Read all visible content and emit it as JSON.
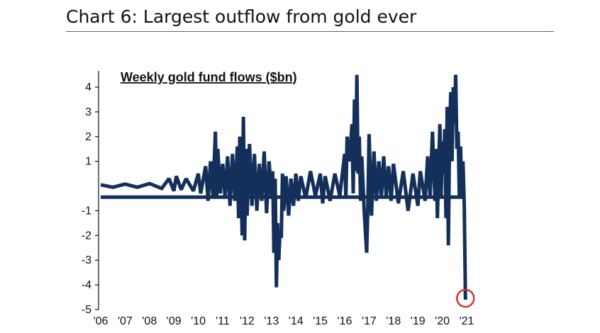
{
  "header": {
    "title": "Chart 6: Largest outflow from gold ever"
  },
  "colors": {
    "series": "#14305a",
    "highlight": "#d8342a",
    "rule": "#4a6b8e"
  },
  "chart_data": {
    "type": "bar",
    "title": "Weekly gold fund flows ($bn)",
    "xlabel": "",
    "ylabel": "",
    "ylim": [
      -5,
      4.5
    ],
    "yticks": [
      4,
      3,
      2,
      1,
      -1,
      -2,
      -3,
      -4,
      -5
    ],
    "xticks": [
      "'06",
      "'07",
      "'08",
      "'09",
      "'10",
      "'11",
      "'12",
      "'13",
      "'14",
      "'15",
      "'16",
      "'17",
      "'18",
      "'19",
      "'20",
      "'21"
    ],
    "grid": false,
    "annotation": {
      "label": "",
      "year": 2020.95,
      "value": -4.6,
      "shape": "circle"
    },
    "series": [
      {
        "values": [
          [
            2006.0,
            0.05
          ],
          [
            2006.5,
            -0.05
          ],
          [
            2007.0,
            0.08
          ],
          [
            2007.5,
            -0.05
          ],
          [
            2008.0,
            0.1
          ],
          [
            2008.5,
            -0.1
          ],
          [
            2008.8,
            0.3
          ],
          [
            2009.0,
            -0.2
          ],
          [
            2009.1,
            0.4
          ],
          [
            2009.3,
            -0.15
          ],
          [
            2009.5,
            0.3
          ],
          [
            2009.8,
            -0.2
          ],
          [
            2010.0,
            0.5
          ],
          [
            2010.1,
            -0.3
          ],
          [
            2010.3,
            0.8
          ],
          [
            2010.4,
            -0.6
          ],
          [
            2010.5,
            1.0
          ],
          [
            2010.6,
            -0.4
          ],
          [
            2010.7,
            2.2
          ],
          [
            2010.75,
            -0.5
          ],
          [
            2010.8,
            1.5
          ],
          [
            2010.9,
            -0.3
          ],
          [
            2011.0,
            0.9
          ],
          [
            2011.1,
            -0.5
          ],
          [
            2011.2,
            1.2
          ],
          [
            2011.3,
            -0.8
          ],
          [
            2011.4,
            1.3
          ],
          [
            2011.5,
            -0.6
          ],
          [
            2011.6,
            1.6
          ],
          [
            2011.65,
            -1.3
          ],
          [
            2011.7,
            2.0
          ],
          [
            2011.8,
            -2.0
          ],
          [
            2011.85,
            2.8
          ],
          [
            2011.9,
            -2.2
          ],
          [
            2011.95,
            1.5
          ],
          [
            2012.0,
            -1.2
          ],
          [
            2012.1,
            1.7
          ],
          [
            2012.2,
            -0.8
          ],
          [
            2012.3,
            1.3
          ],
          [
            2012.4,
            -1.0
          ],
          [
            2012.5,
            0.9
          ],
          [
            2012.6,
            -0.6
          ],
          [
            2012.7,
            1.4
          ],
          [
            2012.8,
            -1.1
          ],
          [
            2012.9,
            1.0
          ],
          [
            2013.0,
            -0.5
          ],
          [
            2013.05,
            0.6
          ],
          [
            2013.1,
            -2.7
          ],
          [
            2013.15,
            0.3
          ],
          [
            2013.2,
            -4.1
          ],
          [
            2013.25,
            -1.5
          ],
          [
            2013.3,
            -3.0
          ],
          [
            2013.35,
            -1.8
          ],
          [
            2013.4,
            -2.1
          ],
          [
            2013.45,
            0.5
          ],
          [
            2013.5,
            -1.0
          ],
          [
            2013.6,
            0.4
          ],
          [
            2013.7,
            -1.2
          ],
          [
            2013.8,
            0.3
          ],
          [
            2013.9,
            -0.8
          ],
          [
            2014.0,
            0.5
          ],
          [
            2014.1,
            -0.6
          ],
          [
            2014.2,
            0.4
          ],
          [
            2014.4,
            -0.5
          ],
          [
            2014.6,
            0.6
          ],
          [
            2014.8,
            -0.4
          ],
          [
            2015.0,
            0.5
          ],
          [
            2015.1,
            -0.7
          ],
          [
            2015.2,
            0.4
          ],
          [
            2015.4,
            -0.6
          ],
          [
            2015.6,
            0.5
          ],
          [
            2015.8,
            -0.4
          ],
          [
            2016.0,
            1.3
          ],
          [
            2016.05,
            -0.5
          ],
          [
            2016.1,
            2.0
          ],
          [
            2016.2,
            1.0
          ],
          [
            2016.3,
            2.5
          ],
          [
            2016.35,
            -0.3
          ],
          [
            2016.4,
            3.5
          ],
          [
            2016.45,
            0.6
          ],
          [
            2016.5,
            4.5
          ],
          [
            2016.55,
            0.5
          ],
          [
            2016.6,
            2.0
          ],
          [
            2016.65,
            -0.6
          ],
          [
            2016.7,
            1.2
          ],
          [
            2016.8,
            -1.0
          ],
          [
            2016.9,
            -2.7
          ],
          [
            2016.95,
            -0.8
          ],
          [
            2017.0,
            2.1
          ],
          [
            2017.1,
            -1.2
          ],
          [
            2017.2,
            1.4
          ],
          [
            2017.3,
            -0.6
          ],
          [
            2017.4,
            1.0
          ],
          [
            2017.5,
            -0.5
          ],
          [
            2017.6,
            1.2
          ],
          [
            2017.7,
            -0.4
          ],
          [
            2017.8,
            0.8
          ],
          [
            2017.9,
            -0.6
          ],
          [
            2018.0,
            0.9
          ],
          [
            2018.2,
            -0.7
          ],
          [
            2018.4,
            0.6
          ],
          [
            2018.6,
            -1.0
          ],
          [
            2018.8,
            0.5
          ],
          [
            2019.0,
            -0.8
          ],
          [
            2019.1,
            0.6
          ],
          [
            2019.3,
            -0.6
          ],
          [
            2019.4,
            1.2
          ],
          [
            2019.5,
            -0.4
          ],
          [
            2019.6,
            2.2
          ],
          [
            2019.7,
            -0.6
          ],
          [
            2019.75,
            1.5
          ],
          [
            2019.8,
            -1.3
          ],
          [
            2019.9,
            2.5
          ],
          [
            2019.95,
            -0.5
          ],
          [
            2020.0,
            1.8
          ],
          [
            2020.05,
            0.5
          ],
          [
            2020.1,
            2.3
          ],
          [
            2020.15,
            -1.3
          ],
          [
            2020.2,
            3.2
          ],
          [
            2020.25,
            -2.4
          ],
          [
            2020.3,
            2.0
          ],
          [
            2020.35,
            3.8
          ],
          [
            2020.4,
            1.0
          ],
          [
            2020.45,
            4.0
          ],
          [
            2020.5,
            2.5
          ],
          [
            2020.55,
            4.5
          ],
          [
            2020.6,
            1.5
          ],
          [
            2020.65,
            2.2
          ],
          [
            2020.7,
            -0.5
          ],
          [
            2020.75,
            1.6
          ],
          [
            2020.8,
            -0.5
          ],
          [
            2020.85,
            1.0
          ],
          [
            2020.9,
            -0.8
          ],
          [
            2020.95,
            -4.6
          ]
        ]
      }
    ]
  }
}
